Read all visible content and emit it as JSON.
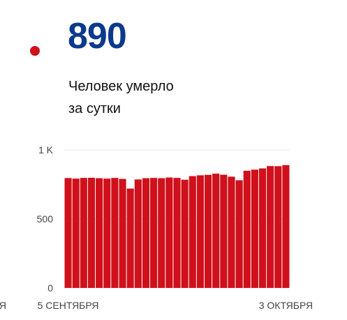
{
  "headline": {
    "value": "890",
    "caption_line1": "Человек умерло",
    "caption_line2": "за сутки"
  },
  "colors": {
    "accent": "#d0101b",
    "number": "#0b3a8d",
    "grid": "#e6e6e6"
  },
  "chart_data": {
    "type": "bar",
    "title": "",
    "xlabel": "",
    "ylabel": "",
    "ylim": [
      0,
      1000
    ],
    "y_ticks": [
      {
        "value": 0,
        "label": "0"
      },
      {
        "value": 500,
        "label": "500"
      },
      {
        "value": 1000,
        "label": "1 K"
      }
    ],
    "x_tick_labels": [
      {
        "index": 0,
        "label": "5 СЕНТЯБРЯ"
      },
      {
        "index": 28,
        "label": "3 ОКТЯБРЯ"
      }
    ],
    "left_clipped_label": "ЯБРЯ",
    "grid": true,
    "values": [
      796,
      792,
      797,
      798,
      795,
      792,
      797,
      790,
      720,
      786,
      795,
      797,
      795,
      800,
      797,
      784,
      810,
      816,
      819,
      828,
      820,
      806,
      780,
      849,
      857,
      866,
      883,
      882,
      890
    ]
  }
}
